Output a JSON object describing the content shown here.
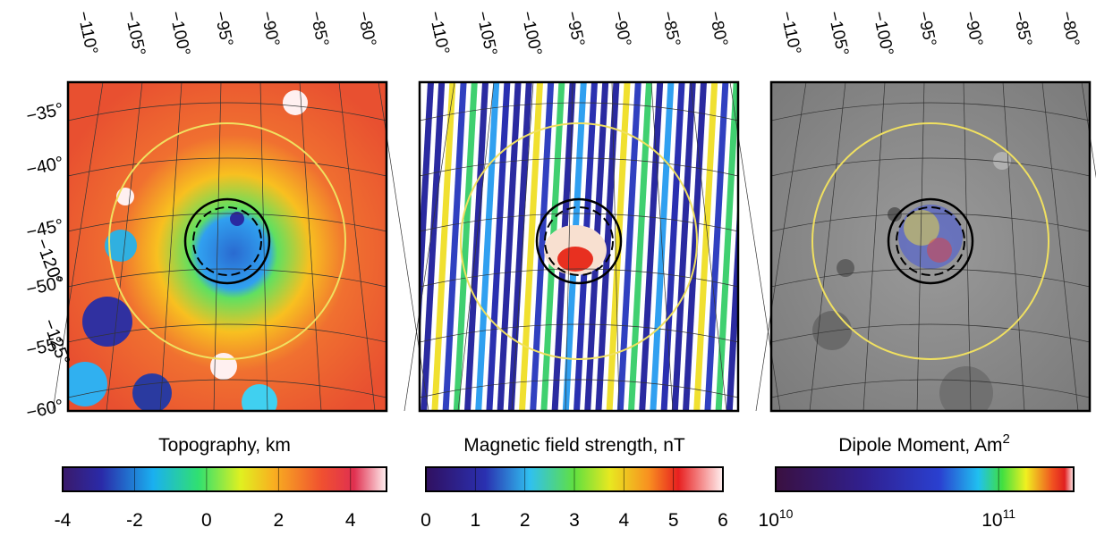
{
  "longitude_labels": [
    "−110°",
    "−105°",
    "−100°",
    "−95°",
    "−90°",
    "−85°",
    "−80°"
  ],
  "latitude_labels": [
    "−35°",
    "−40°",
    "−45°",
    "−50°",
    "−55°",
    "−60°"
  ],
  "extra_longitude_labels": [
    "−120°",
    "−125°"
  ],
  "panels": [
    {
      "colorbar": {
        "title": "Topography, km",
        "lim": [
          -4,
          5
        ],
        "ticks": [
          -4,
          -2,
          0,
          2,
          4
        ]
      }
    },
    {
      "colorbar": {
        "title": "Magnetic field strength, nT",
        "lim": [
          0,
          6
        ],
        "ticks": [
          0,
          1,
          2,
          3,
          4,
          5,
          6
        ]
      }
    },
    {
      "colorbar": {
        "title": "Dipole Moment, Am",
        "title_superscript": "2",
        "log": true,
        "lim": [
          10000000000,
          217000000000
        ],
        "ticks": [
          {
            "value": 10000000000,
            "label": "10",
            "exponent": "10"
          },
          {
            "value": 100000000000,
            "label": "10",
            "exponent": "11"
          }
        ]
      }
    }
  ]
}
